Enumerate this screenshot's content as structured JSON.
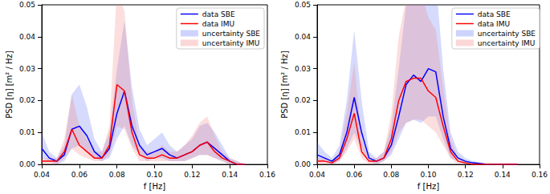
{
  "chart_data": [
    {
      "type": "line",
      "xlabel": "f [Hz]",
      "ylabel": "PSD [η] [m² / Hz]",
      "xlim": [
        0.04,
        0.16
      ],
      "xticks": [
        0.04,
        0.06,
        0.08,
        {
          "value": 0.1,
          "label": "0.10"
        },
        0.12,
        0.14,
        0.16
      ],
      "ylim": [
        0,
        0.05
      ],
      "yticks": [
        {
          "value": 0,
          "label": "0.00"
        },
        0.01,
        0.02,
        0.03,
        0.04,
        0.05
      ],
      "legend": "upper right",
      "x": [
        0.04,
        0.044,
        0.048,
        0.052,
        0.056,
        0.06,
        0.064,
        0.068,
        0.072,
        0.076,
        0.08,
        0.084,
        0.088,
        0.092,
        0.096,
        0.1,
        0.104,
        0.108,
        0.112,
        0.116,
        0.12,
        0.124,
        0.128,
        0.132,
        0.136,
        0.14,
        0.144,
        0.148
      ],
      "series": [
        {
          "name": "data SBE",
          "type": "line",
          "color": "#0000ff",
          "values": [
            0.005,
            0.002,
            0.001,
            0.003,
            0.011,
            0.012,
            0.009,
            0.004,
            0.002,
            0.005,
            0.016,
            0.023,
            0.012,
            0.006,
            0.003,
            0.004,
            0.005,
            0.003,
            0.002,
            0.003,
            0.004,
            0.006,
            0.007,
            0.005,
            0.003,
            0.001,
            0.0,
            0.0
          ]
        },
        {
          "name": "data IMU",
          "type": "line",
          "color": "#ff0000",
          "values": [
            0.001,
            0.001,
            0.001,
            0.004,
            0.011,
            0.006,
            0.004,
            0.002,
            0.002,
            0.006,
            0.025,
            0.023,
            0.01,
            0.003,
            0.002,
            0.002,
            0.003,
            0.002,
            0.002,
            0.003,
            0.004,
            0.006,
            0.007,
            0.004,
            0.002,
            0.001,
            0.0,
            0.0
          ]
        },
        {
          "name": "uncertainty SBE",
          "type": "band",
          "color": "#5a6cf5",
          "lower": [
            0.002,
            0.001,
            0.0,
            0.001,
            0.005,
            0.006,
            0.004,
            0.002,
            0.001,
            0.002,
            0.008,
            0.012,
            0.006,
            0.003,
            0.001,
            0.002,
            0.002,
            0.001,
            0.001,
            0.001,
            0.002,
            0.003,
            0.003,
            0.002,
            0.001,
            0.0,
            0.0,
            0.0
          ],
          "upper": [
            0.01,
            0.004,
            0.002,
            0.006,
            0.022,
            0.025,
            0.018,
            0.008,
            0.004,
            0.01,
            0.03,
            0.045,
            0.024,
            0.011,
            0.006,
            0.008,
            0.01,
            0.006,
            0.004,
            0.006,
            0.008,
            0.012,
            0.013,
            0.01,
            0.006,
            0.002,
            0.001,
            0.0
          ]
        },
        {
          "name": "uncertainty IMU",
          "type": "band",
          "color": "#f57a7a",
          "lower": [
            0.0,
            0.0,
            0.0,
            0.002,
            0.005,
            0.003,
            0.002,
            0.001,
            0.001,
            0.003,
            0.012,
            0.011,
            0.005,
            0.001,
            0.001,
            0.001,
            0.001,
            0.001,
            0.001,
            0.001,
            0.002,
            0.003,
            0.003,
            0.002,
            0.001,
            0.0,
            0.0,
            0.0
          ],
          "upper": [
            0.002,
            0.002,
            0.002,
            0.008,
            0.022,
            0.012,
            0.008,
            0.004,
            0.004,
            0.012,
            0.055,
            0.048,
            0.02,
            0.006,
            0.004,
            0.004,
            0.006,
            0.004,
            0.004,
            0.006,
            0.009,
            0.013,
            0.015,
            0.009,
            0.004,
            0.002,
            0.001,
            0.0
          ]
        }
      ]
    },
    {
      "type": "line",
      "xlabel": "f [Hz]",
      "ylabel": "PSD [η] [m² / Hz]",
      "xlim": [
        0.04,
        0.16
      ],
      "xticks": [
        0.04,
        0.06,
        0.08,
        {
          "value": 0.1,
          "label": "0.10"
        },
        0.12,
        0.14,
        0.16
      ],
      "ylim": [
        0,
        0.05
      ],
      "yticks": [
        {
          "value": 0,
          "label": "0.00"
        },
        0.01,
        0.02,
        0.03,
        0.04,
        0.05
      ],
      "legend": "upper right",
      "x": [
        0.04,
        0.044,
        0.048,
        0.052,
        0.056,
        0.06,
        0.064,
        0.068,
        0.072,
        0.076,
        0.08,
        0.084,
        0.088,
        0.092,
        0.096,
        0.1,
        0.104,
        0.108,
        0.112,
        0.116,
        0.12,
        0.124,
        0.128,
        0.132,
        0.136,
        0.14,
        0.144,
        0.148
      ],
      "series": [
        {
          "name": "data SBE",
          "type": "line",
          "color": "#0000ff",
          "values": [
            0.003,
            0.002,
            0.001,
            0.003,
            0.01,
            0.021,
            0.01,
            0.002,
            0.001,
            0.002,
            0.006,
            0.015,
            0.025,
            0.028,
            0.026,
            0.03,
            0.029,
            0.015,
            0.005,
            0.002,
            0.001,
            0.0005,
            0.0003,
            0,
            0,
            0,
            0,
            0
          ]
        },
        {
          "name": "data IMU",
          "type": "line",
          "color": "#ff0000",
          "values": [
            0.001,
            0.001,
            0.0005,
            0.002,
            0.008,
            0.016,
            0.004,
            0.001,
            0.001,
            0.002,
            0.008,
            0.02,
            0.026,
            0.027,
            0.027,
            0.023,
            0.021,
            0.012,
            0.004,
            0.001,
            0.0005,
            0,
            0,
            0,
            0,
            0,
            0,
            0
          ]
        },
        {
          "name": "uncertainty SBE",
          "type": "band",
          "color": "#5a6cf5",
          "lower": [
            0.001,
            0.001,
            0.0,
            0.001,
            0.005,
            0.01,
            0.005,
            0.001,
            0.0,
            0.001,
            0.003,
            0.008,
            0.013,
            0.014,
            0.013,
            0.015,
            0.015,
            0.008,
            0.002,
            0.001,
            0,
            0,
            0,
            0,
            0,
            0,
            0,
            0
          ],
          "upper": [
            0.007,
            0.004,
            0.002,
            0.006,
            0.02,
            0.042,
            0.02,
            0.004,
            0.002,
            0.004,
            0.012,
            0.03,
            0.05,
            0.056,
            0.052,
            0.06,
            0.058,
            0.03,
            0.01,
            0.004,
            0.002,
            0.001,
            0.0006,
            0,
            0,
            0,
            0,
            0
          ]
        },
        {
          "name": "uncertainty IMU",
          "type": "band",
          "color": "#f57a7a",
          "lower": [
            0,
            0,
            0,
            0.001,
            0.004,
            0.008,
            0.002,
            0,
            0,
            0.001,
            0.004,
            0.01,
            0.013,
            0.014,
            0.014,
            0.012,
            0.01,
            0.006,
            0.002,
            0,
            0,
            0,
            0,
            0,
            0,
            0,
            0,
            0
          ],
          "upper": [
            0.002,
            0.002,
            0.001,
            0.004,
            0.016,
            0.032,
            0.008,
            0.002,
            0.002,
            0.004,
            0.016,
            0.04,
            0.052,
            0.055,
            0.054,
            0.046,
            0.042,
            0.024,
            0.008,
            0.002,
            0.001,
            0,
            0,
            0,
            0,
            0,
            0,
            0
          ]
        }
      ]
    }
  ]
}
